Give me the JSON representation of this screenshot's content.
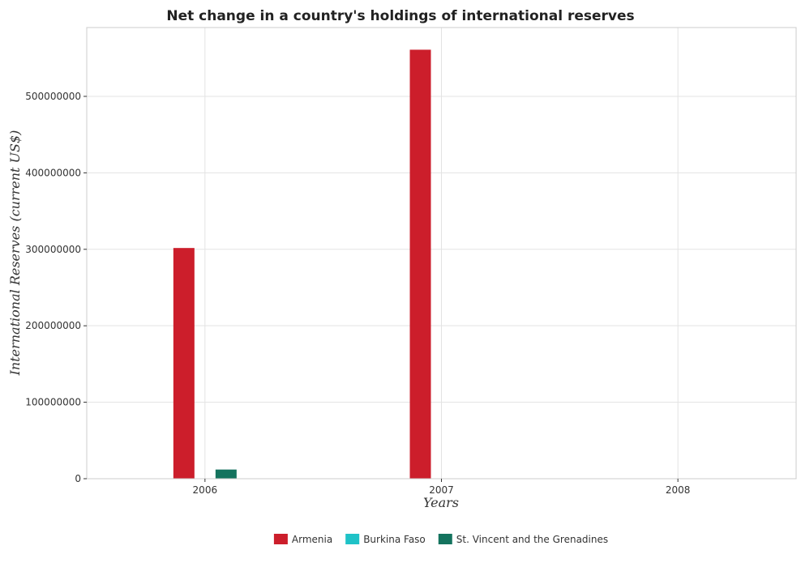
{
  "chart_data": {
    "type": "bar",
    "title": "Net change in a country's holdings of international reserves",
    "xlabel": "Years",
    "ylabel": "International Reserves (current US$)",
    "categories": [
      "2006",
      "2007",
      "2008"
    ],
    "series": [
      {
        "name": "Armenia",
        "color": "#cc1e2b",
        "values": [
          301700000,
          561000000,
          0
        ]
      },
      {
        "name": "Burkina Faso",
        "color": "#1fc2c7",
        "values": [
          0,
          0,
          0
        ]
      },
      {
        "name": "St. Vincent and the Grenadines",
        "color": "#14735e",
        "values": [
          12000000,
          0,
          0
        ]
      }
    ],
    "ylim": [
      0,
      590000000
    ],
    "yticks": [
      0,
      100000000,
      200000000,
      300000000,
      400000000,
      500000000
    ],
    "ytick_labels": [
      "0",
      "100000000",
      "200000000",
      "300000000",
      "400000000",
      "500000000"
    ],
    "grid": true,
    "legend_position": "bottom-center"
  }
}
